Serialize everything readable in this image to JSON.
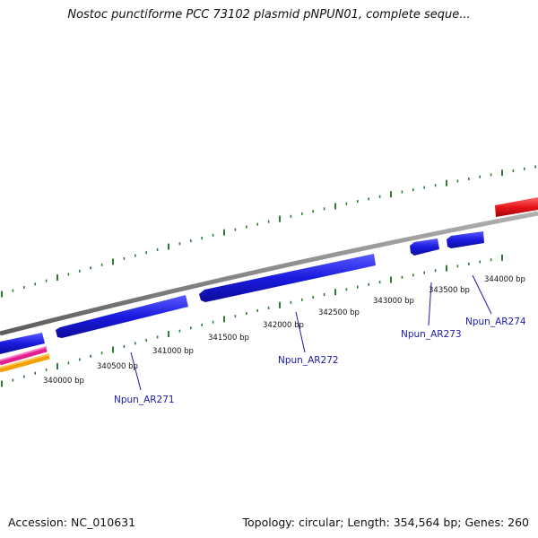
{
  "header": {
    "title": "Nostoc punctiforme PCC 73102 plasmid pNPUN01, complete seque..."
  },
  "map": {
    "bp_labels": [
      "340000 bp",
      "340500 bp",
      "341000 bp",
      "341500 bp",
      "342000 bp",
      "342500 bp",
      "343000 bp",
      "343500 bp",
      "344000 bp"
    ],
    "genes": [
      "Npun_AR271",
      "Npun_AR272",
      "Npun_AR273",
      "Npun_AR274"
    ],
    "colors": {
      "cds": "#1a1adf",
      "tick": "#2e7d32",
      "backbone": "#8c8c8c",
      "gene_label": "#1a1aaa",
      "red_feature": "#e8141b",
      "magenta_feature": "#e0208c",
      "orange_feature": "#f5a00a"
    }
  },
  "footer": {
    "accession": "Accession: NC_010631",
    "summary": "Topology: circular; Length: 354,564 bp; Genes: 260"
  }
}
